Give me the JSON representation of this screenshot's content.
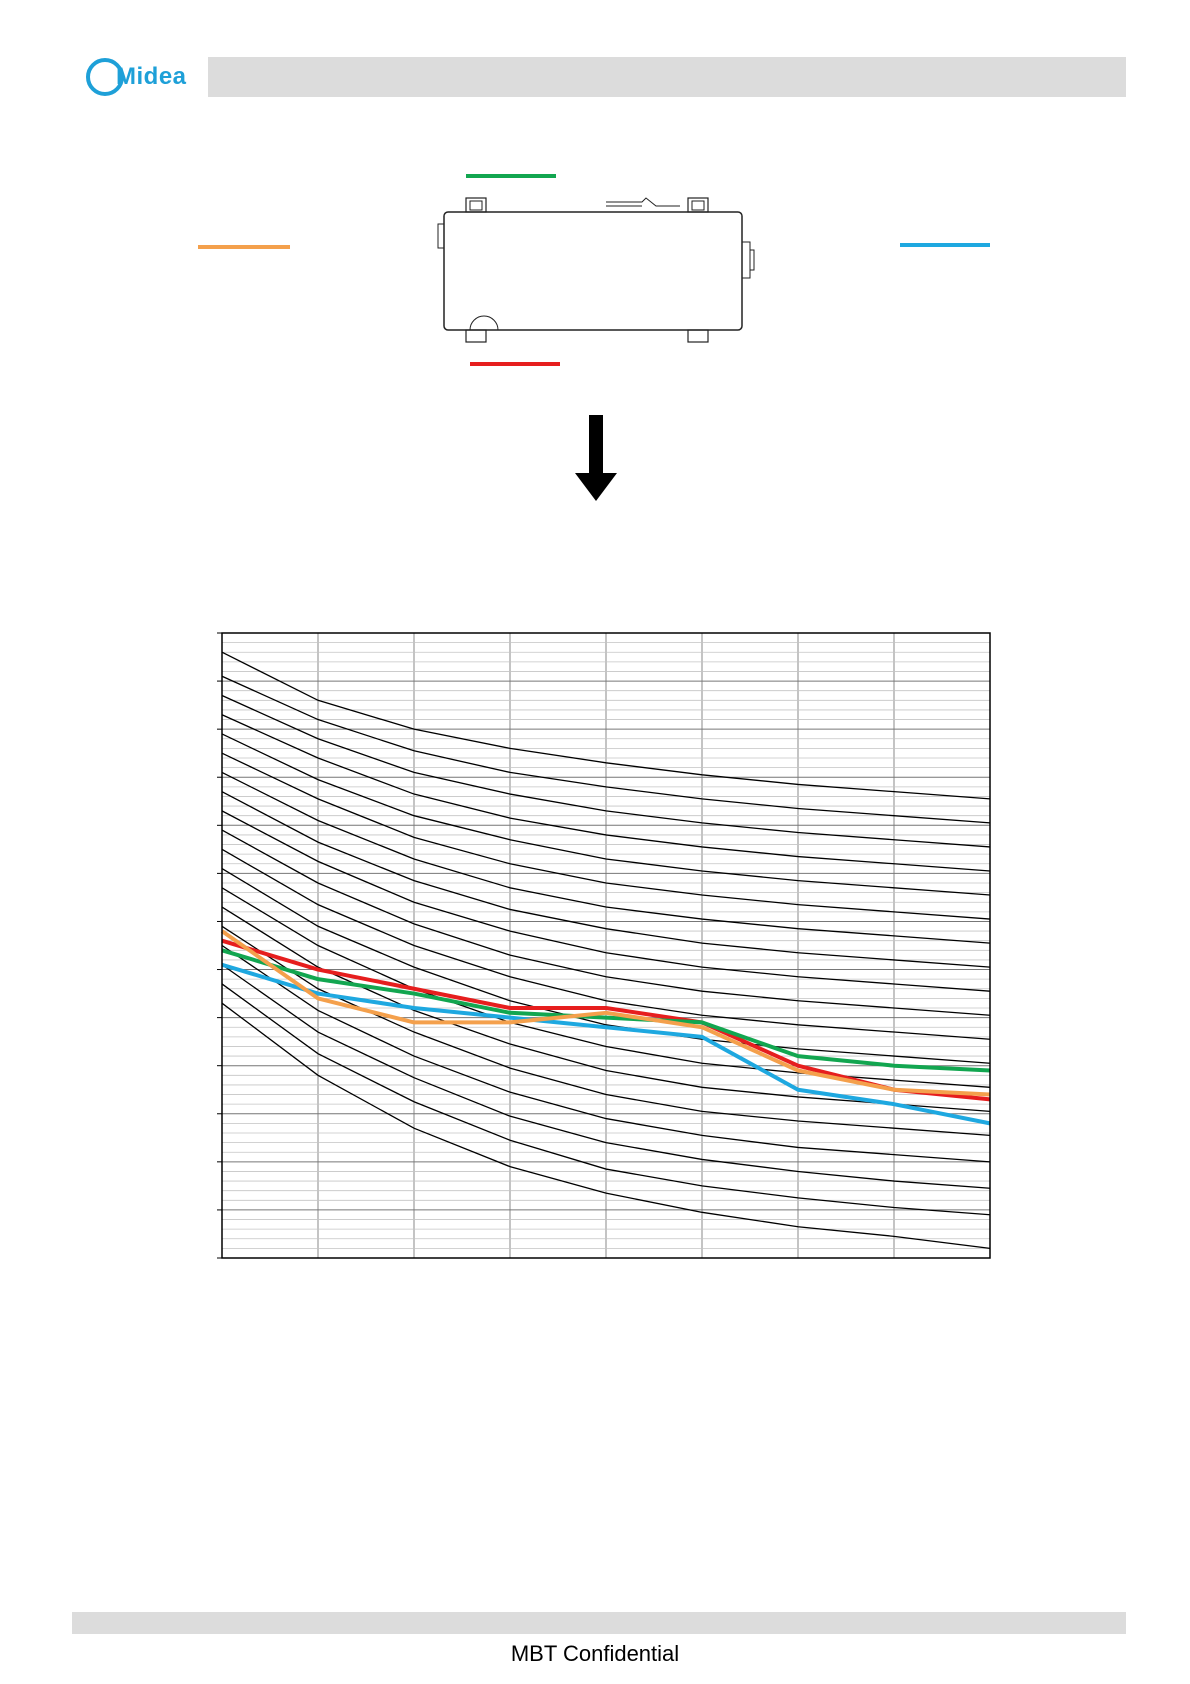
{
  "header": {
    "logo_text": "Midea"
  },
  "footer": {
    "text": "MBT Confidential"
  },
  "colors": {
    "logo": "#1ea0d8",
    "header_bar": "#dcdcdc",
    "green": "#12a650",
    "orange": "#f4a04c",
    "blue": "#1ea8e0",
    "red": "#e61e1e",
    "nc_curve": "#000000",
    "grid": "#888888"
  },
  "diagram": {
    "legend_keys": [
      {
        "position": "top",
        "color": "green"
      },
      {
        "position": "left",
        "color": "orange"
      },
      {
        "position": "right",
        "color": "blue"
      },
      {
        "position": "bottom",
        "color": "red"
      }
    ]
  },
  "chart_data": {
    "type": "line",
    "title": "",
    "xlabel": "",
    "ylabel": "",
    "x": [
      0,
      1,
      2,
      3,
      4,
      5,
      6,
      7,
      8
    ],
    "ylim": [
      0,
      13
    ],
    "grid": true,
    "reference_curves": [
      [
        12.6,
        11.6,
        11.0,
        10.6,
        10.3,
        10.05,
        9.85,
        9.7,
        9.55
      ],
      [
        12.1,
        11.2,
        10.55,
        10.1,
        9.8,
        9.55,
        9.35,
        9.2,
        9.05
      ],
      [
        11.7,
        10.8,
        10.1,
        9.65,
        9.3,
        9.05,
        8.85,
        8.7,
        8.55
      ],
      [
        11.3,
        10.4,
        9.65,
        9.15,
        8.8,
        8.55,
        8.35,
        8.2,
        8.05
      ],
      [
        10.9,
        9.95,
        9.2,
        8.7,
        8.3,
        8.05,
        7.85,
        7.7,
        7.55
      ],
      [
        10.5,
        9.55,
        8.75,
        8.2,
        7.8,
        7.55,
        7.35,
        7.2,
        7.05
      ],
      [
        10.1,
        9.1,
        8.3,
        7.7,
        7.3,
        7.05,
        6.85,
        6.7,
        6.55
      ],
      [
        9.7,
        8.65,
        7.85,
        7.25,
        6.85,
        6.55,
        6.35,
        6.2,
        6.05
      ],
      [
        9.3,
        8.25,
        7.4,
        6.8,
        6.35,
        6.05,
        5.85,
        5.7,
        5.55
      ],
      [
        8.9,
        7.8,
        6.95,
        6.3,
        5.85,
        5.55,
        5.35,
        5.2,
        5.05
      ],
      [
        8.5,
        7.35,
        6.5,
        5.85,
        5.35,
        5.05,
        4.85,
        4.7,
        4.55
      ],
      [
        8.1,
        6.9,
        6.05,
        5.35,
        4.85,
        4.55,
        4.35,
        4.2,
        4.05
      ],
      [
        7.7,
        6.5,
        5.6,
        4.9,
        4.4,
        4.05,
        3.85,
        3.7,
        3.55
      ],
      [
        7.3,
        6.05,
        5.15,
        4.45,
        3.9,
        3.55,
        3.35,
        3.2,
        3.05
      ],
      [
        6.9,
        5.6,
        4.7,
        3.95,
        3.4,
        3.05,
        2.85,
        2.7,
        2.55
      ],
      [
        6.5,
        5.15,
        4.2,
        3.45,
        2.9,
        2.55,
        2.3,
        2.15,
        2.0
      ],
      [
        6.1,
        4.7,
        3.75,
        2.95,
        2.4,
        2.05,
        1.8,
        1.6,
        1.45
      ],
      [
        5.7,
        4.25,
        3.25,
        2.45,
        1.85,
        1.5,
        1.25,
        1.05,
        0.9
      ],
      [
        5.3,
        3.8,
        2.7,
        1.9,
        1.35,
        0.95,
        0.65,
        0.45,
        0.2
      ]
    ],
    "series": [
      {
        "color": "red",
        "values": [
          6.6,
          6.0,
          5.6,
          5.2,
          5.2,
          4.9,
          4.0,
          3.5,
          3.3
        ]
      },
      {
        "color": "green",
        "values": [
          6.4,
          5.8,
          5.5,
          5.1,
          5.0,
          4.9,
          4.2,
          4.0,
          3.9
        ]
      },
      {
        "color": "blue",
        "values": [
          6.1,
          5.5,
          5.2,
          5.0,
          4.8,
          4.6,
          3.5,
          3.2,
          2.8
        ]
      },
      {
        "color": "orange",
        "values": [
          6.8,
          5.4,
          4.9,
          4.9,
          5.1,
          4.8,
          3.9,
          3.5,
          3.4
        ]
      }
    ]
  }
}
